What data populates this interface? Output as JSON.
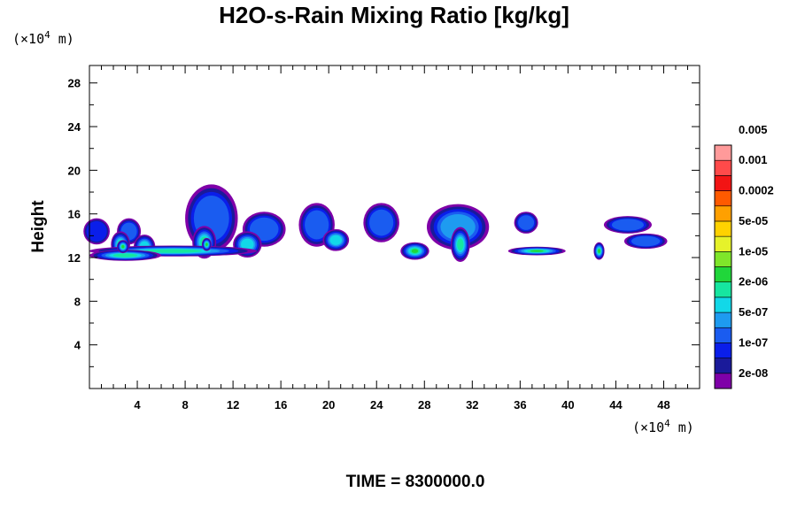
{
  "chart_data": {
    "type": "heatmap",
    "title": "H2O-s-Rain Mixing Ratio [kg/kg]",
    "ylabel": "Height",
    "xlabel": "",
    "x_unit_prefix": "(×10",
    "x_unit_exp": "4",
    "x_unit_suffix": " m)",
    "y_unit_prefix": "(×10",
    "y_unit_exp": "4",
    "y_unit_suffix": " m)",
    "xlim": [
      0,
      51
    ],
    "ylim": [
      0,
      29.6
    ],
    "xticks": [
      4,
      8,
      12,
      16,
      20,
      24,
      28,
      32,
      36,
      40,
      44,
      48
    ],
    "yticks": [
      4,
      8,
      12,
      16,
      20,
      24,
      28
    ],
    "x_minor_step": 1,
    "y_minor_step": 2,
    "grid": false,
    "colorbar": {
      "position": "right",
      "colors": [
        "#7f00a8",
        "#1a1a9a",
        "#0a1eea",
        "#1a5cf0",
        "#1e9bf0",
        "#12d8e8",
        "#16e6a0",
        "#20d63a",
        "#7fe62a",
        "#e6f22a",
        "#ffd200",
        "#ffa000",
        "#ff5a00",
        "#f21414",
        "#ff4a4a",
        "#ff9a9a"
      ],
      "labels": [
        "2e-08",
        "1e-07",
        "5e-07",
        "2e-06",
        "1e-05",
        "5e-05",
        "0.0002",
        "0.001",
        "0.005"
      ],
      "label_bins": [
        1,
        3,
        5,
        7,
        9,
        11,
        13,
        15,
        17
      ]
    },
    "cells": [
      {
        "x": 0.6,
        "y": 14.4,
        "w": 2.2,
        "h": 2.4,
        "level": 2
      },
      {
        "x": 3.3,
        "y": 14.4,
        "w": 2.0,
        "h": 2.4,
        "level": 3
      },
      {
        "x": 10.2,
        "y": 15.6,
        "w": 4.4,
        "h": 6.2,
        "level": 3
      },
      {
        "x": 14.6,
        "y": 14.6,
        "w": 3.6,
        "h": 3.2,
        "level": 3
      },
      {
        "x": 19.0,
        "y": 15.0,
        "w": 3.0,
        "h": 4.0,
        "level": 3
      },
      {
        "x": 24.4,
        "y": 15.2,
        "w": 3.0,
        "h": 3.6,
        "level": 3
      },
      {
        "x": 30.8,
        "y": 14.8,
        "w": 5.2,
        "h": 4.2,
        "level": 4
      },
      {
        "x": 36.5,
        "y": 15.2,
        "w": 2.0,
        "h": 2.0,
        "level": 3
      },
      {
        "x": 42.6,
        "y": 12.6,
        "w": 0.9,
        "h": 1.6,
        "level": 7
      },
      {
        "x": 45.0,
        "y": 15.0,
        "w": 4.0,
        "h": 1.6,
        "level": 3
      },
      {
        "x": 46.5,
        "y": 13.5,
        "w": 3.6,
        "h": 1.4,
        "level": 3
      },
      {
        "x": 2.6,
        "y": 13.2,
        "w": 1.6,
        "h": 2.4,
        "level": 6
      },
      {
        "x": 4.6,
        "y": 13.0,
        "w": 1.8,
        "h": 2.2,
        "level": 5
      },
      {
        "x": 9.6,
        "y": 13.4,
        "w": 2.0,
        "h": 3.0,
        "level": 6
      },
      {
        "x": 13.2,
        "y": 13.2,
        "w": 2.4,
        "h": 2.4,
        "level": 5
      },
      {
        "x": 20.6,
        "y": 13.6,
        "w": 2.2,
        "h": 2.0,
        "level": 5
      },
      {
        "x": 27.2,
        "y": 12.6,
        "w": 2.4,
        "h": 1.6,
        "level": 7
      },
      {
        "x": 31.0,
        "y": 13.2,
        "w": 1.6,
        "h": 3.2,
        "level": 6
      },
      {
        "x": 37.4,
        "y": 12.6,
        "w": 4.8,
        "h": 0.8,
        "level": 7
      },
      {
        "x": 7.0,
        "y": 12.6,
        "w": 14.0,
        "h": 1.0,
        "level": 6
      },
      {
        "x": 3.0,
        "y": 12.2,
        "w": 6.0,
        "h": 1.0,
        "level": 6
      },
      {
        "x": 2.8,
        "y": 13.0,
        "w": 1.0,
        "h": 1.2,
        "level": 8
      },
      {
        "x": 9.8,
        "y": 13.2,
        "w": 0.8,
        "h": 1.2,
        "level": 8
      }
    ]
  },
  "footer": {
    "time_label": "TIME = 8300000.0"
  }
}
